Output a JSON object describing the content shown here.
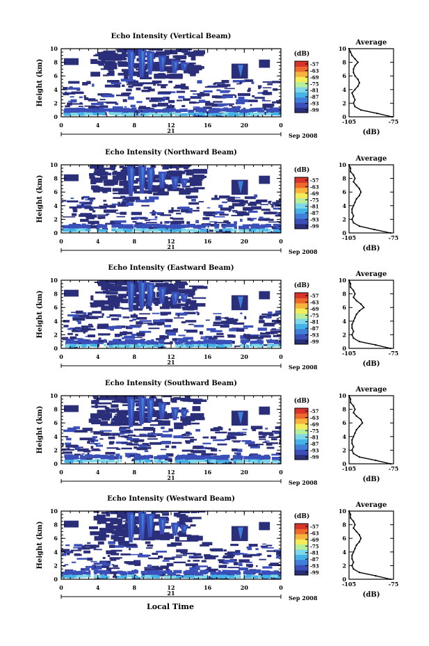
{
  "xlabel": "Local Time",
  "date_day": "21",
  "date_suffix": "Sep 2008",
  "colorbar": {
    "unit": "(dB)",
    "ticks": [
      "-57",
      "-63",
      "-69",
      "-75",
      "-81",
      "-87",
      "-93",
      "-99"
    ],
    "colors": [
      "#2b2f7a",
      "#3b4fb8",
      "#3f7fd8",
      "#45b2e8",
      "#7fd8e8",
      "#b8ee9a",
      "#f5ec5a",
      "#f6b43c",
      "#ee6a2c",
      "#d8342a"
    ]
  },
  "chart_data": [
    {
      "type": "heatmap",
      "title": "Echo Intensity (Vertical Beam)",
      "ylabel": "Height (km)",
      "xlim": [
        0,
        24
      ],
      "ylim": [
        0,
        10
      ],
      "xticks": [
        "0",
        "4",
        "8",
        "12",
        "16",
        "20",
        "0"
      ],
      "yticks": [
        "0",
        "2",
        "4",
        "6",
        "8",
        "10"
      ],
      "profile": {
        "title": "Average",
        "xlabel": "(dB)",
        "xticks": [
          "-105",
          "-75"
        ],
        "xlim": [
          -105,
          -75
        ],
        "ylim": [
          0,
          10
        ],
        "h": [
          0,
          0.5,
          1,
          1.5,
          2,
          2.5,
          3,
          3.5,
          4,
          4.5,
          5,
          5.5,
          6,
          6.5,
          7,
          7.5,
          8,
          8.5,
          9,
          9.5,
          10
        ],
        "db": [
          -76,
          -86,
          -97,
          -101,
          -102,
          -101,
          -102,
          -103,
          -101,
          -99,
          -98,
          -99,
          -101,
          -102,
          -102,
          -101,
          -99,
          -101,
          -103,
          -104,
          -105
        ]
      }
    },
    {
      "type": "heatmap",
      "title": "Echo Intensity (Northward Beam)",
      "ylabel": "Height (km)",
      "xlim": [
        0,
        24
      ],
      "ylim": [
        0,
        10
      ],
      "xticks": [
        "0",
        "4",
        "8",
        "12",
        "16",
        "20",
        "0"
      ],
      "yticks": [
        "0",
        "2",
        "4",
        "6",
        "8",
        "10"
      ],
      "profile": {
        "title": "Average",
        "xlabel": "(dB)",
        "xticks": [
          "-105",
          "-75"
        ],
        "xlim": [
          -105,
          -75
        ],
        "ylim": [
          0,
          10
        ],
        "h": [
          0,
          0.5,
          1,
          1.5,
          2,
          2.5,
          3,
          3.5,
          4,
          4.5,
          5,
          5.5,
          6,
          6.5,
          7,
          7.5,
          8,
          8.5,
          9,
          9.5,
          10
        ],
        "db": [
          -77,
          -88,
          -98,
          -102,
          -103,
          -102,
          -103,
          -103,
          -102,
          -101,
          -100,
          -98,
          -97,
          -98,
          -100,
          -102,
          -101,
          -102,
          -104,
          -104,
          -105
        ]
      }
    },
    {
      "type": "heatmap",
      "title": "Echo Intensity (Eastward Beam)",
      "ylabel": "Height (km)",
      "xlim": [
        0,
        24
      ],
      "ylim": [
        0,
        10
      ],
      "xticks": [
        "0",
        "4",
        "8",
        "12",
        "16",
        "20",
        "0"
      ],
      "yticks": [
        "0",
        "2",
        "4",
        "6",
        "8",
        "10"
      ],
      "profile": {
        "title": "Average",
        "xlabel": "(dB)",
        "xticks": [
          "-105",
          "-75"
        ],
        "xlim": [
          -105,
          -75
        ],
        "ylim": [
          0,
          10
        ],
        "h": [
          0,
          0.5,
          1,
          1.5,
          2,
          2.5,
          3,
          3.5,
          4,
          4.5,
          5,
          5.5,
          6,
          6.5,
          7,
          7.5,
          8,
          8.5,
          9,
          9.5,
          10
        ],
        "db": [
          -77,
          -87,
          -98,
          -102,
          -103,
          -102,
          -103,
          -103,
          -102,
          -101,
          -100,
          -98,
          -95,
          -97,
          -100,
          -102,
          -101,
          -102,
          -104,
          -104,
          -105
        ]
      }
    },
    {
      "type": "heatmap",
      "title": "Echo Intensity (Southward Beam)",
      "ylabel": "Height (km)",
      "xlim": [
        0,
        24
      ],
      "ylim": [
        0,
        10
      ],
      "xticks": [
        "0",
        "4",
        "8",
        "12",
        "16",
        "20",
        "0"
      ],
      "yticks": [
        "0",
        "2",
        "4",
        "6",
        "8",
        "10"
      ],
      "profile": {
        "title": "Average",
        "xlabel": "(dB)",
        "xticks": [
          "-105",
          "-75"
        ],
        "xlim": [
          -105,
          -75
        ],
        "ylim": [
          0,
          10
        ],
        "h": [
          0,
          0.5,
          1,
          1.5,
          2,
          2.5,
          3,
          3.5,
          4,
          4.5,
          5,
          5.5,
          6,
          6.5,
          7,
          7.5,
          8,
          8.5,
          9,
          9.5,
          10
        ],
        "db": [
          -77,
          -87,
          -98,
          -102,
          -103,
          -102,
          -103,
          -103,
          -102,
          -101,
          -100,
          -98,
          -96,
          -97,
          -100,
          -102,
          -101,
          -102,
          -104,
          -104,
          -105
        ]
      }
    },
    {
      "type": "heatmap",
      "title": "Echo Intensity (Westward Beam)",
      "ylabel": "Height (km)",
      "xlim": [
        0,
        24
      ],
      "ylim": [
        0,
        10
      ],
      "xticks": [
        "0",
        "4",
        "8",
        "12",
        "16",
        "20",
        "0"
      ],
      "yticks": [
        "0",
        "2",
        "4",
        "6",
        "8",
        "10"
      ],
      "profile": {
        "title": "Average",
        "xlabel": "(dB)",
        "xticks": [
          "-105",
          "-75"
        ],
        "xlim": [
          -105,
          -75
        ],
        "ylim": [
          0,
          10
        ],
        "h": [
          0,
          0.5,
          1,
          1.5,
          2,
          2.5,
          3,
          3.5,
          4,
          4.5,
          5,
          5.5,
          6,
          6.5,
          7,
          7.5,
          8,
          8.5,
          9,
          9.5,
          10
        ],
        "db": [
          -77,
          -87,
          -98,
          -102,
          -103,
          -102,
          -103,
          -103,
          -102,
          -101,
          -100,
          -98,
          -97,
          -98,
          -100,
          -102,
          -101,
          -102,
          -104,
          -104,
          -105
        ]
      }
    }
  ]
}
